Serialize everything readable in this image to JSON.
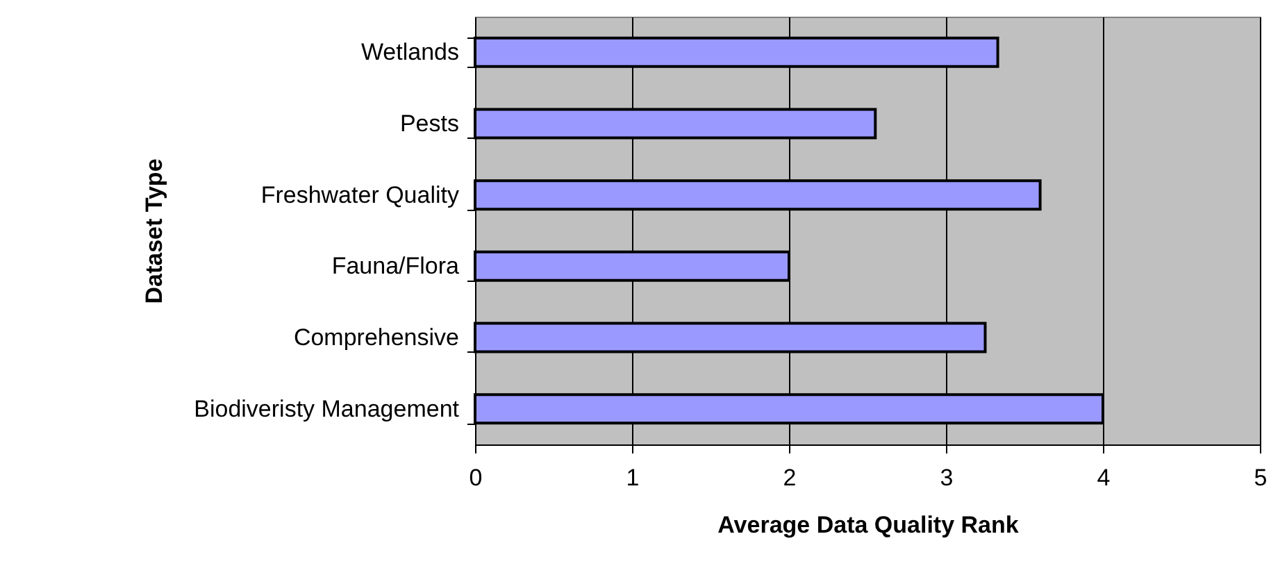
{
  "chart_data": {
    "type": "bar",
    "orientation": "horizontal",
    "xlabel": "Average Data Quality Rank",
    "ylabel": "Dataset Type",
    "categories": [
      "Wetlands",
      "Pests",
      "Freshwater Quality",
      "Fauna/Flora",
      "Comprehensive",
      "Biodiveristy Management"
    ],
    "values": [
      3.33,
      2.55,
      3.6,
      2.0,
      3.25,
      4.0
    ],
    "color": "#9999ff",
    "xlim": [
      0,
      5
    ],
    "xticks": [
      0,
      1,
      2,
      3,
      4,
      5
    ],
    "grid": "x"
  }
}
